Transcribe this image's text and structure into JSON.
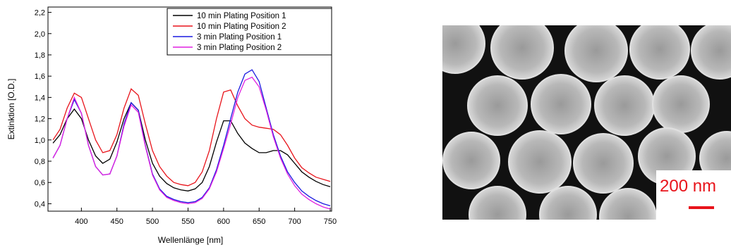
{
  "chart_data": {
    "type": "line",
    "xlabel": "Wellenlänge [nm]",
    "ylabel": "Extinktion [O.D.]",
    "x": [
      360,
      370,
      380,
      390,
      400,
      410,
      420,
      430,
      440,
      450,
      460,
      470,
      480,
      490,
      500,
      510,
      520,
      530,
      540,
      550,
      560,
      570,
      580,
      590,
      600,
      610,
      620,
      630,
      640,
      650,
      660,
      670,
      680,
      690,
      700,
      710,
      720,
      730,
      740,
      750
    ],
    "series": [
      {
        "name": "10 min Plating Position 1",
        "color": "#000000",
        "values": [
          0.97,
          1.05,
          1.2,
          1.29,
          1.2,
          1.0,
          0.85,
          0.78,
          0.82,
          0.98,
          1.2,
          1.35,
          1.28,
          1.0,
          0.78,
          0.66,
          0.59,
          0.55,
          0.53,
          0.52,
          0.54,
          0.6,
          0.75,
          0.98,
          1.18,
          1.18,
          1.06,
          0.97,
          0.92,
          0.88,
          0.88,
          0.9,
          0.9,
          0.86,
          0.78,
          0.7,
          0.65,
          0.61,
          0.58,
          0.56
        ]
      },
      {
        "name": "10 min Plating Position 2",
        "color": "#e8141b",
        "values": [
          1.0,
          1.1,
          1.3,
          1.44,
          1.4,
          1.2,
          1.0,
          0.88,
          0.9,
          1.05,
          1.3,
          1.48,
          1.42,
          1.15,
          0.9,
          0.75,
          0.66,
          0.6,
          0.58,
          0.57,
          0.6,
          0.7,
          0.9,
          1.2,
          1.45,
          1.47,
          1.32,
          1.2,
          1.14,
          1.12,
          1.11,
          1.1,
          1.05,
          0.95,
          0.83,
          0.74,
          0.69,
          0.65,
          0.63,
          0.61
        ]
      },
      {
        "name": "3 min Plating Position 1",
        "color": "#1a1ae0",
        "values": [
          0.83,
          0.95,
          1.2,
          1.38,
          1.25,
          0.95,
          0.75,
          0.67,
          0.68,
          0.85,
          1.15,
          1.35,
          1.28,
          0.95,
          0.68,
          0.54,
          0.47,
          0.44,
          0.42,
          0.41,
          0.42,
          0.46,
          0.55,
          0.72,
          0.95,
          1.2,
          1.45,
          1.62,
          1.66,
          1.55,
          1.3,
          1.05,
          0.85,
          0.7,
          0.6,
          0.52,
          0.47,
          0.43,
          0.4,
          0.38
        ]
      },
      {
        "name": "3 min Plating Position 2",
        "color": "#e020e0",
        "values": [
          0.83,
          0.95,
          1.2,
          1.4,
          1.25,
          0.95,
          0.75,
          0.67,
          0.68,
          0.85,
          1.13,
          1.33,
          1.26,
          0.94,
          0.67,
          0.53,
          0.46,
          0.43,
          0.41,
          0.4,
          0.41,
          0.45,
          0.54,
          0.7,
          0.92,
          1.15,
          1.4,
          1.56,
          1.59,
          1.5,
          1.28,
          1.03,
          0.83,
          0.68,
          0.57,
          0.49,
          0.44,
          0.4,
          0.37,
          0.35
        ]
      }
    ],
    "xlim": [
      353,
      752
    ],
    "xticks": [
      400,
      450,
      500,
      550,
      600,
      650,
      700,
      750
    ],
    "ylim": [
      0.33,
      2.25
    ],
    "yticks": [
      {
        "value": 0.4,
        "label": "0,4"
      },
      {
        "value": 0.6,
        "label": "0,6"
      },
      {
        "value": 0.8,
        "label": "0,8"
      },
      {
        "value": 1.0,
        "label": "1,0"
      },
      {
        "value": 1.2,
        "label": "1,2"
      },
      {
        "value": 1.4,
        "label": "1,4"
      },
      {
        "value": 1.6,
        "label": "1,6"
      },
      {
        "value": 1.8,
        "label": "1,8"
      },
      {
        "value": 2.0,
        "label": "2,0"
      },
      {
        "value": 2.2,
        "label": "2,2"
      }
    ],
    "legend": "upper right"
  },
  "image": {
    "scale_label": "200 nm"
  }
}
